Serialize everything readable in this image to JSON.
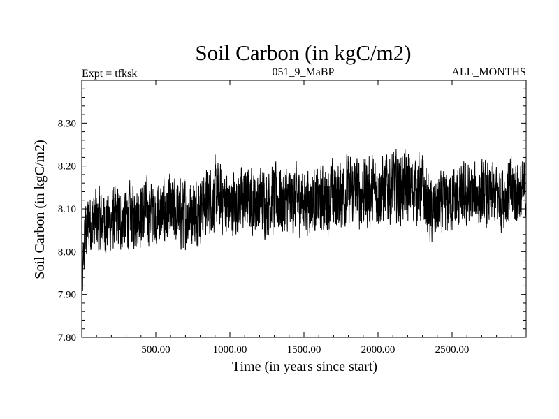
{
  "chart_data": {
    "type": "line",
    "title": "Soil Carbon (in kgC/m2)",
    "subtitle_left": "Expt = tfksk",
    "subtitle_center": "051_9_MaBP",
    "subtitle_right": "ALL_MONTHS",
    "xlabel": "Time (in years since start)",
    "ylabel": "Soil Carbon (in kgC/m2)",
    "xlim": [
      0,
      3000
    ],
    "ylim": [
      7.8,
      8.4
    ],
    "xticks": [
      500,
      1000,
      1500,
      2000,
      2500
    ],
    "xtick_labels": [
      "500.00",
      "1000.00",
      "1500.00",
      "2000.00",
      "2500.00"
    ],
    "yticks": [
      7.8,
      7.9,
      8.0,
      8.1,
      8.2,
      8.3
    ],
    "ytick_labels": [
      "7.80",
      "7.90",
      "8.00",
      "8.10",
      "8.20",
      "8.30"
    ],
    "grid": false,
    "series": [
      {
        "name": "Soil Carbon",
        "color": "#000000",
        "envelope": {
          "x": [
            0,
            10,
            25,
            50,
            100,
            200,
            300,
            400,
            500,
            600,
            700,
            800,
            850,
            900,
            1000,
            1100,
            1200,
            1300,
            1400,
            1500,
            1600,
            1700,
            1800,
            1900,
            2000,
            2100,
            2200,
            2300,
            2350,
            2400,
            2500,
            2600,
            2700,
            2800,
            2900,
            3000
          ],
          "center": [
            7.85,
            7.98,
            8.04,
            8.07,
            8.07,
            8.07,
            8.08,
            8.09,
            8.09,
            8.09,
            8.09,
            8.1,
            8.12,
            8.13,
            8.11,
            8.12,
            8.12,
            8.12,
            8.12,
            8.12,
            8.12,
            8.13,
            8.14,
            8.14,
            8.14,
            8.15,
            8.15,
            8.15,
            8.09,
            8.1,
            8.12,
            8.13,
            8.13,
            8.13,
            8.14,
            8.14
          ],
          "amplitude": [
            0.05,
            0.08,
            0.1,
            0.1,
            0.1,
            0.1,
            0.1,
            0.1,
            0.1,
            0.11,
            0.11,
            0.1,
            0.1,
            0.11,
            0.1,
            0.1,
            0.1,
            0.11,
            0.11,
            0.1,
            0.1,
            0.11,
            0.11,
            0.11,
            0.11,
            0.11,
            0.11,
            0.11,
            0.1,
            0.1,
            0.1,
            0.1,
            0.1,
            0.1,
            0.11,
            0.1
          ]
        }
      }
    ]
  }
}
